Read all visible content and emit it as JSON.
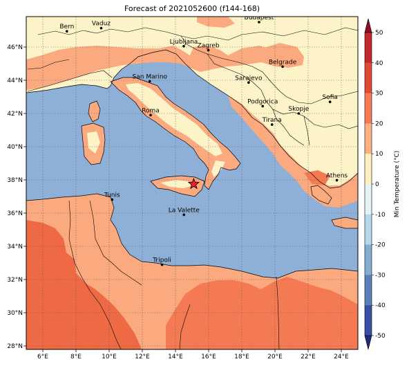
{
  "title": "Forecast of 2021052600 (f144-168)",
  "colorbar": {
    "label": "Min Temperature (°C)",
    "ticks": [
      50,
      40,
      30,
      20,
      10,
      0,
      -10,
      -20,
      -30,
      -40,
      -50
    ],
    "colors_top_to_bottom": [
      "#8e0e26",
      "#c1272d",
      "#e04a35",
      "#f47a54",
      "#fbb184",
      "#fdf0c0",
      "#e4f4f4",
      "#b4d8e8",
      "#86acd2",
      "#5a80b8",
      "#3a4ea2",
      "#1d2a84"
    ]
  },
  "axes": {
    "x_ticks": [
      "6°E",
      "8°E",
      "10°E",
      "12°E",
      "14°E",
      "16°E",
      "18°E",
      "20°E",
      "22°E",
      "24°E"
    ],
    "y_ticks": [
      "46°N",
      "44°N",
      "42°N",
      "40°N",
      "38°N",
      "36°N",
      "34°N",
      "32°N",
      "30°N",
      "28°N"
    ]
  },
  "colors": {
    "sea": "#8eb0d6",
    "warm_land": "#fdf3c8",
    "light_orange": "#fba97e",
    "orange": "#f47a54",
    "dark_orange": "#ee6a45",
    "marker": "#e8202a"
  },
  "cities": [
    {
      "name": "Bern",
      "lon": 7.45,
      "lat": 46.95
    },
    {
      "name": "Vaduz",
      "lon": 9.52,
      "lat": 47.14
    },
    {
      "name": "Budapest",
      "lon": 19.04,
      "lat": 47.5
    },
    {
      "name": "Ljubljana",
      "lon": 14.5,
      "lat": 46.05
    },
    {
      "name": "Zagreb",
      "lon": 15.98,
      "lat": 45.81
    },
    {
      "name": "Belgrade",
      "lon": 20.46,
      "lat": 44.82
    },
    {
      "name": "San Marino",
      "lon": 12.45,
      "lat": 43.94
    },
    {
      "name": "Sarajevo",
      "lon": 18.41,
      "lat": 43.86
    },
    {
      "name": "Sofia",
      "lon": 23.32,
      "lat": 42.7
    },
    {
      "name": "Roma",
      "lon": 12.5,
      "lat": 41.9
    },
    {
      "name": "Podgorica",
      "lon": 19.26,
      "lat": 42.44
    },
    {
      "name": "Skopje",
      "lon": 21.43,
      "lat": 42.0
    },
    {
      "name": "Tirana",
      "lon": 19.82,
      "lat": 41.33
    },
    {
      "name": "Athens",
      "lon": 23.73,
      "lat": 37.98
    },
    {
      "name": "Tunis",
      "lon": 10.18,
      "lat": 36.81
    },
    {
      "name": "La Valette",
      "lon": 14.51,
      "lat": 35.9
    },
    {
      "name": "Tripoli",
      "lon": 13.19,
      "lat": 32.89
    }
  ],
  "marker": {
    "type": "star",
    "lon": 15.1,
    "lat": 37.75
  }
}
